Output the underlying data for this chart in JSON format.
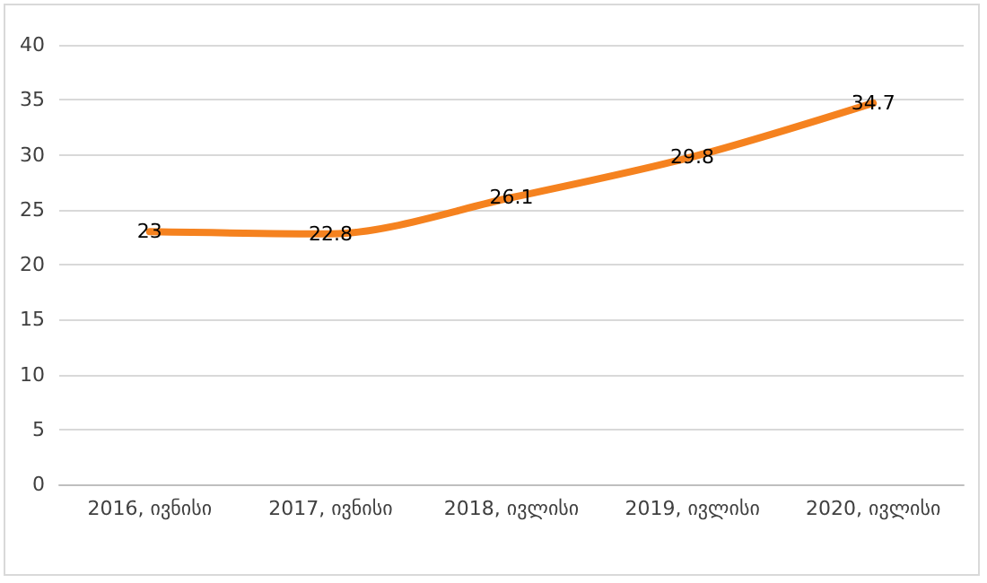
{
  "chart_data": {
    "type": "line",
    "categories": [
      "2016, ივნისი",
      "2017, ივნისი",
      "2018, ივლისი",
      "2019, ივლისი",
      "2020, ივლისი"
    ],
    "series": [
      {
        "color": "#f5821f",
        "values": [
          23,
          22.8,
          26.1,
          29.8,
          34.7
        ]
      }
    ],
    "ylim": [
      0,
      40
    ],
    "yticks": [
      0,
      5,
      10,
      15,
      20,
      25,
      30,
      35,
      40
    ],
    "grid": "y",
    "data_labels": true,
    "marker": "none",
    "line_style": "solid"
  }
}
